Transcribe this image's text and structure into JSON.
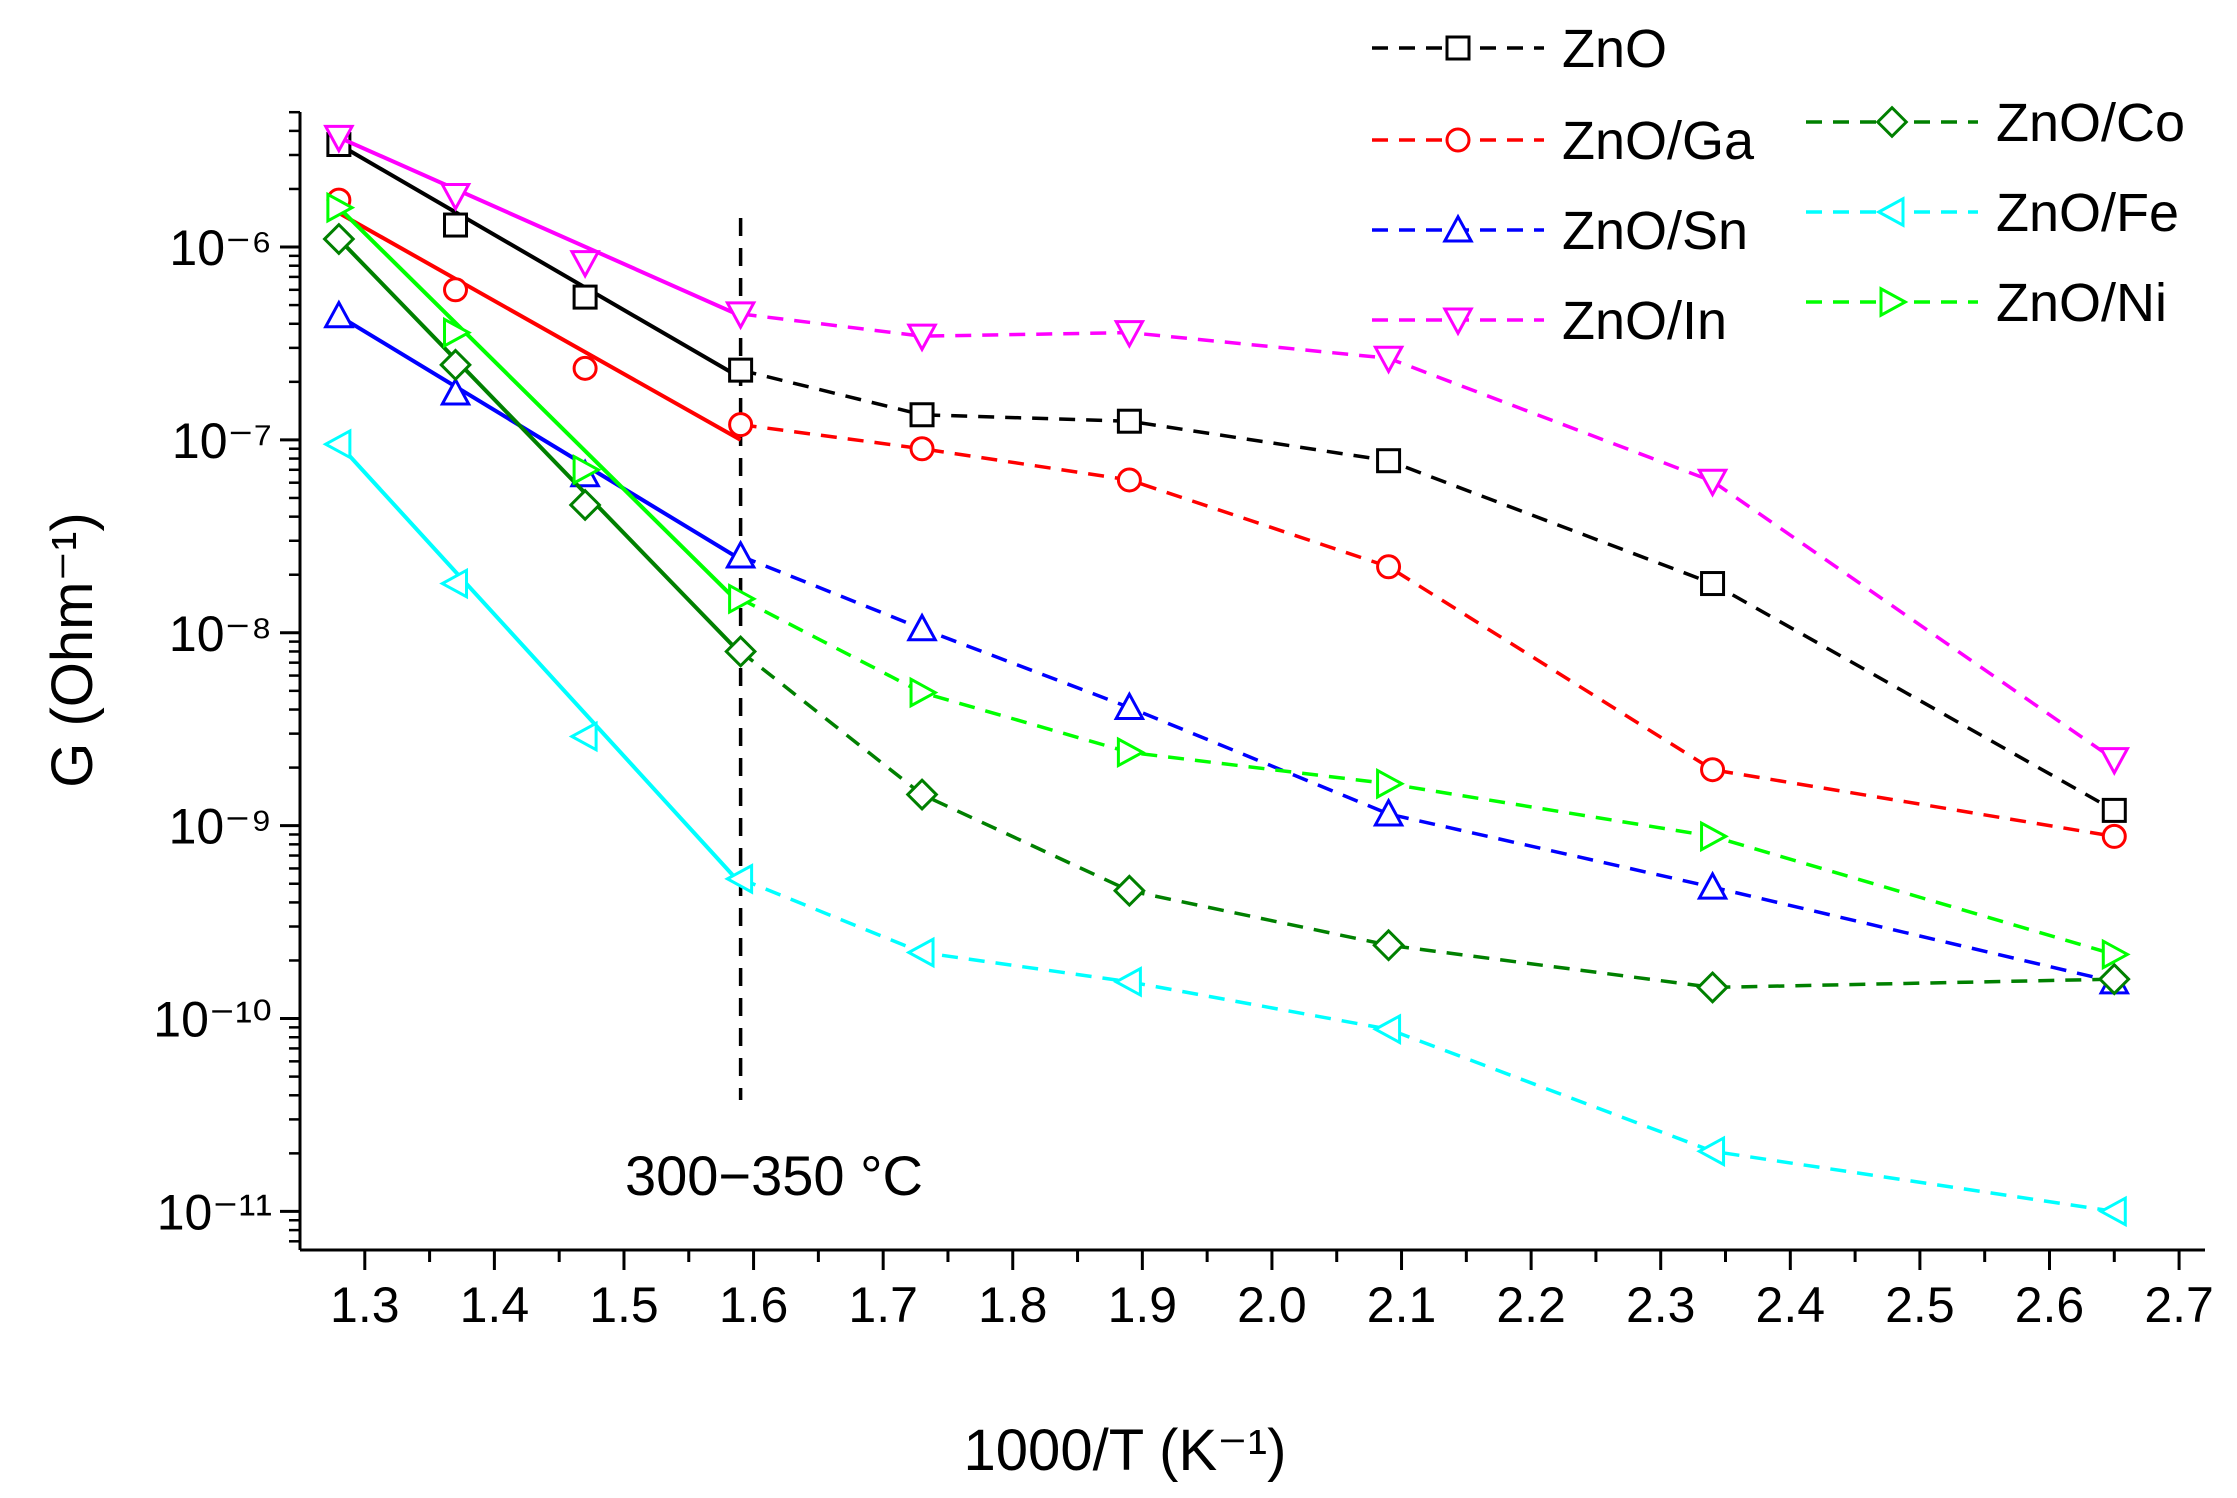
{
  "chart_data": {
    "type": "line",
    "xlabel": "1000/T (K⁻¹)",
    "ylabel": "G (Ohm⁻¹)",
    "xlim": [
      1.25,
      2.72
    ],
    "ylim_exponents": [
      -11.2,
      -5.3
    ],
    "y_scale": "log",
    "grid": false,
    "legend_placement": "top-right",
    "x_ticks": [
      "1.3",
      "1.4",
      "1.5",
      "1.6",
      "1.7",
      "1.8",
      "1.9",
      "2.0",
      "2.1",
      "2.2",
      "2.3",
      "2.4",
      "2.5",
      "2.6",
      "2.7"
    ],
    "x_tick_values": [
      1.3,
      1.4,
      1.5,
      1.6,
      1.7,
      1.8,
      1.9,
      2.0,
      2.1,
      2.2,
      2.3,
      2.4,
      2.5,
      2.6,
      2.7
    ],
    "y_tick_exponents": [
      -6,
      -7,
      -8,
      -9,
      -10,
      -11
    ],
    "y_tick_labels": [
      "10⁻⁶",
      "10⁻⁷",
      "10⁻⁸",
      "10⁻⁹",
      "10⁻¹⁰",
      "10⁻¹¹"
    ],
    "x": [
      1.28,
      1.37,
      1.47,
      1.59,
      1.73,
      1.89,
      2.09,
      2.34,
      2.65
    ],
    "annotation": "300−350 °C",
    "divider_x": 1.59,
    "series": [
      {
        "name": "ZnO",
        "color": "#000000",
        "marker": "square",
        "fit": [
          [
            1.28,
            3.4e-06
          ],
          [
            1.59,
            2.1e-07
          ]
        ],
        "values": [
          3.4e-06,
          1.3e-06,
          5.5e-07,
          2.3e-07,
          1.35e-07,
          1.25e-07,
          7.8e-08,
          1.8e-08,
          1.2e-09
        ]
      },
      {
        "name": "ZnO/Ga",
        "color": "#ff0000",
        "marker": "circle",
        "fit": [
          [
            1.28,
            1.5e-06
          ],
          [
            1.59,
            1e-07
          ]
        ],
        "values": [
          1.75e-06,
          6e-07,
          2.35e-07,
          1.2e-07,
          9e-08,
          6.2e-08,
          2.2e-08,
          1.95e-09,
          8.8e-10
        ]
      },
      {
        "name": "ZnO/Sn",
        "color": "#0000ff",
        "marker": "triangle-up",
        "fit": [
          [
            1.28,
            4.4e-07
          ],
          [
            1.59,
            2.4e-08
          ]
        ],
        "values": [
          4.4e-07,
          1.75e-07,
          6.6e-08,
          2.5e-08,
          1.05e-08,
          4.1e-09,
          1.15e-09,
          4.8e-10,
          1.55e-10
        ]
      },
      {
        "name": "ZnO/In",
        "color": "#ff00ff",
        "marker": "triangle-down",
        "fit": [
          [
            1.28,
            3.7e-06
          ],
          [
            1.59,
            4.4e-07
          ]
        ],
        "values": [
          3.7e-06,
          1.85e-06,
          8.3e-07,
          4.5e-07,
          3.45e-07,
          3.6e-07,
          2.65e-07,
          6.1e-08,
          2.2e-09
        ]
      },
      {
        "name": "ZnO/Co",
        "color": "#008000",
        "marker": "diamond",
        "fit": [
          [
            1.28,
            1.1e-06
          ],
          [
            1.59,
            7.8e-09
          ]
        ],
        "values": [
          1.1e-06,
          2.45e-07,
          4.6e-08,
          8e-09,
          1.45e-09,
          4.6e-10,
          2.4e-10,
          1.45e-10,
          1.6e-10
        ]
      },
      {
        "name": "ZnO/Fe",
        "color": "#00ffff",
        "marker": "triangle-left",
        "fit": [
          [
            1.28,
            9.5e-08
          ],
          [
            1.59,
            5e-10
          ]
        ],
        "values": [
          9.5e-08,
          1.8e-08,
          2.9e-09,
          5.3e-10,
          2.2e-10,
          1.55e-10,
          8.8e-11,
          2.05e-11,
          1e-11
        ]
      },
      {
        "name": "ZnO/Ni",
        "color": "#00ff00",
        "marker": "triangle-right",
        "fit": [
          [
            1.28,
            1.6e-06
          ],
          [
            1.59,
            1.4e-08
          ]
        ],
        "values": [
          1.6e-06,
          3.6e-07,
          7e-08,
          1.5e-08,
          4.9e-09,
          2.4e-09,
          1.65e-09,
          8.8e-10,
          2.15e-10
        ]
      }
    ]
  }
}
